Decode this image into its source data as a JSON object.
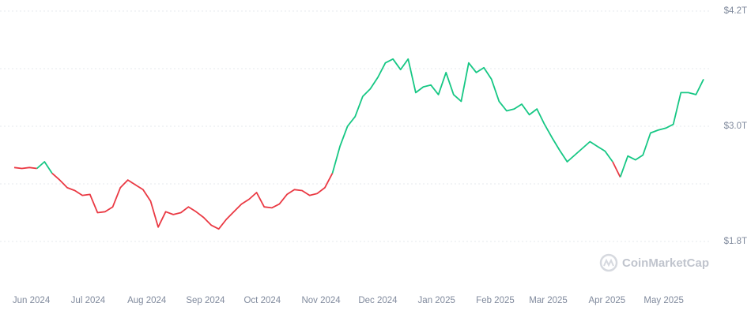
{
  "chart_data": {
    "type": "line",
    "watermark": "CoinMarketCap",
    "x": [
      0,
      4,
      8,
      12,
      16,
      20,
      24,
      28,
      32,
      36,
      40,
      44,
      48,
      52,
      56,
      60,
      64,
      68,
      72,
      76,
      80,
      84,
      88,
      92,
      96,
      100,
      104,
      108,
      112,
      116,
      120,
      124,
      128,
      132,
      136,
      140,
      144,
      148,
      152,
      156,
      160,
      164,
      168,
      172,
      176,
      180,
      184,
      188,
      192,
      196,
      200,
      204,
      208,
      212,
      216,
      220,
      224,
      228,
      232,
      236,
      240,
      244,
      248,
      252,
      256,
      260,
      264,
      268,
      272,
      276,
      280,
      284,
      288,
      292,
      296,
      300,
      304,
      308,
      312,
      316,
      320,
      324,
      328,
      332,
      336,
      340,
      344,
      348,
      352,
      356,
      360,
      364
    ],
    "values": [
      2.57,
      2.56,
      2.57,
      2.56,
      2.63,
      2.51,
      2.44,
      2.36,
      2.33,
      2.28,
      2.29,
      2.1,
      2.11,
      2.16,
      2.36,
      2.44,
      2.39,
      2.34,
      2.22,
      1.95,
      2.11,
      2.08,
      2.1,
      2.16,
      2.11,
      2.05,
      1.97,
      1.93,
      2.03,
      2.11,
      2.19,
      2.24,
      2.31,
      2.16,
      2.15,
      2.19,
      2.29,
      2.34,
      2.33,
      2.28,
      2.3,
      2.36,
      2.51,
      2.79,
      3.0,
      3.1,
      3.31,
      3.39,
      3.51,
      3.66,
      3.7,
      3.59,
      3.7,
      3.35,
      3.41,
      3.43,
      3.33,
      3.56,
      3.33,
      3.26,
      3.66,
      3.56,
      3.61,
      3.49,
      3.26,
      3.16,
      3.18,
      3.23,
      3.12,
      3.18,
      3.02,
      2.88,
      2.75,
      2.63,
      2.7,
      2.77,
      2.84,
      2.79,
      2.74,
      2.63,
      2.47,
      2.69,
      2.65,
      2.7,
      2.93,
      2.96,
      2.98,
      3.02,
      3.35,
      3.35,
      3.33,
      3.49
    ],
    "up_color": "#16c784",
    "down_color": "#ea3943",
    "xlim": [
      0,
      364
    ],
    "xticks": [
      {
        "value": 9,
        "label": "Jun 2024"
      },
      {
        "value": 39,
        "label": "Jul 2024"
      },
      {
        "value": 70,
        "label": "Aug 2024"
      },
      {
        "value": 101,
        "label": "Sep 2024"
      },
      {
        "value": 131,
        "label": "Oct 2024"
      },
      {
        "value": 162,
        "label": "Nov 2024"
      },
      {
        "value": 192,
        "label": "Dec 2024"
      },
      {
        "value": 223,
        "label": "Jan 2025"
      },
      {
        "value": 254,
        "label": "Feb 2025"
      },
      {
        "value": 282,
        "label": "Mar 2025"
      },
      {
        "value": 313,
        "label": "Apr 2025"
      },
      {
        "value": 343,
        "label": "May 2025"
      }
    ],
    "ylim": [
      1.8,
      4.2
    ],
    "yticks": [
      {
        "value": 4.2,
        "label": "$4.2T"
      },
      {
        "value": 3.0,
        "label": "$3.0T"
      },
      {
        "value": 1.8,
        "label": "$1.8T"
      }
    ],
    "y_minor_ticks": [
      3.6,
      2.4
    ],
    "grid": true
  }
}
